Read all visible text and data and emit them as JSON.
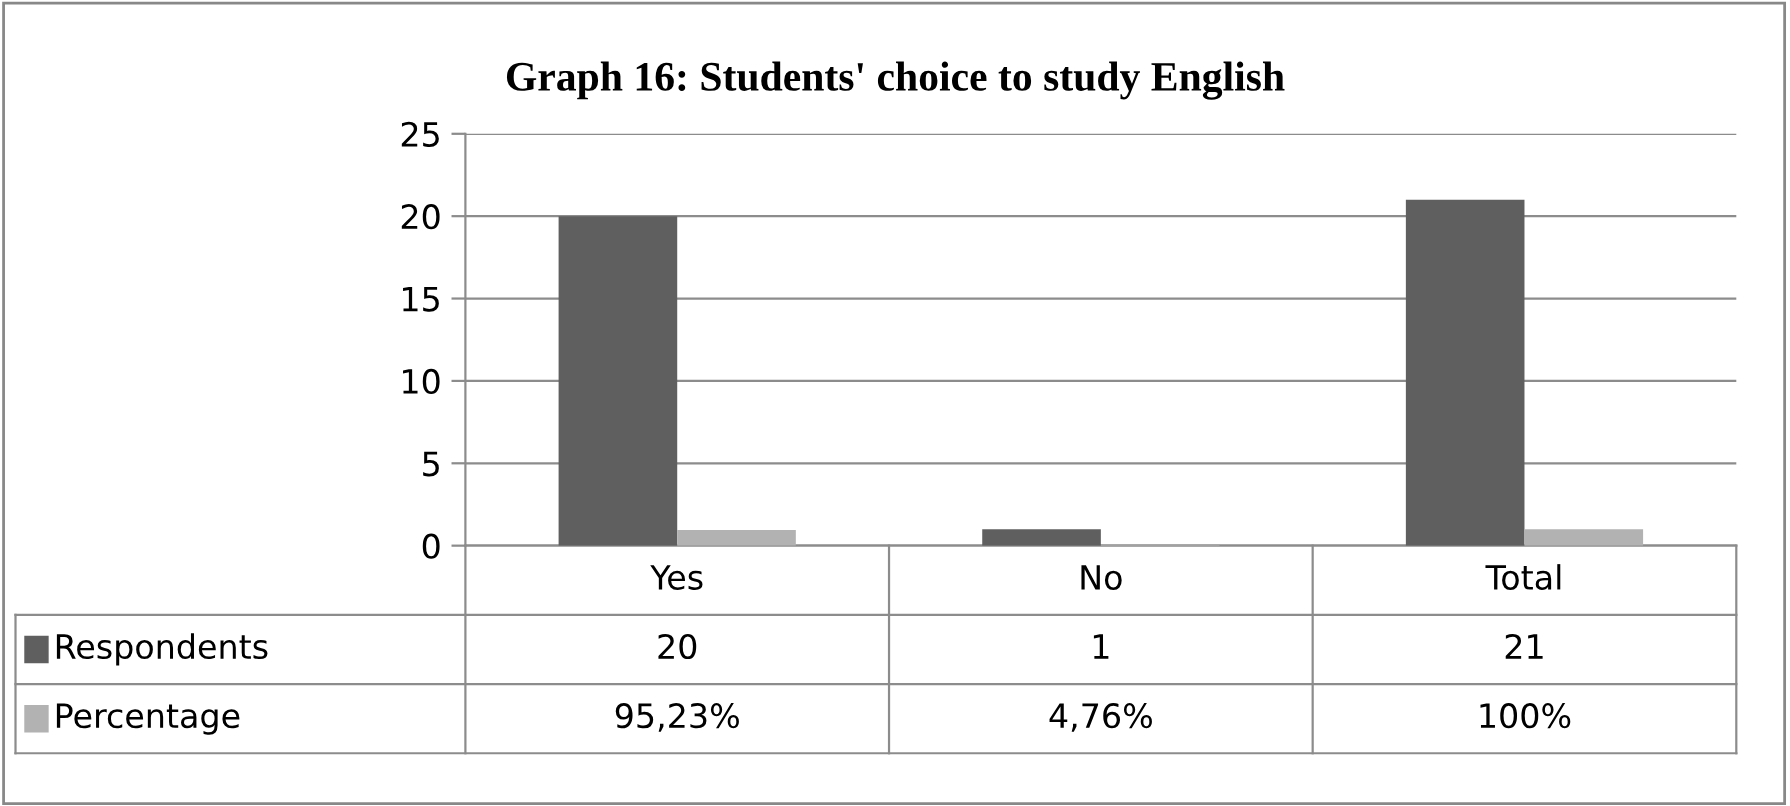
{
  "chart_data": {
    "type": "bar",
    "title": "Graph 16: Students' choice to study English",
    "categories": [
      "Yes",
      "No",
      "Total"
    ],
    "series": [
      {
        "name": "Respondents",
        "color": "#5f5f5f",
        "values": [
          20,
          1,
          21
        ],
        "value_labels": [
          "20",
          "1",
          "21"
        ]
      },
      {
        "name": "Percentage",
        "color": "#b2b2b2",
        "values": [
          0.9523,
          0.0476,
          1
        ],
        "value_labels": [
          "95,23%",
          "4,76%",
          "100%"
        ]
      }
    ],
    "ylim": [
      0,
      25
    ],
    "yticks": [
      0,
      5,
      10,
      15,
      20,
      25
    ],
    "grid": "y",
    "legend": "bottom"
  }
}
